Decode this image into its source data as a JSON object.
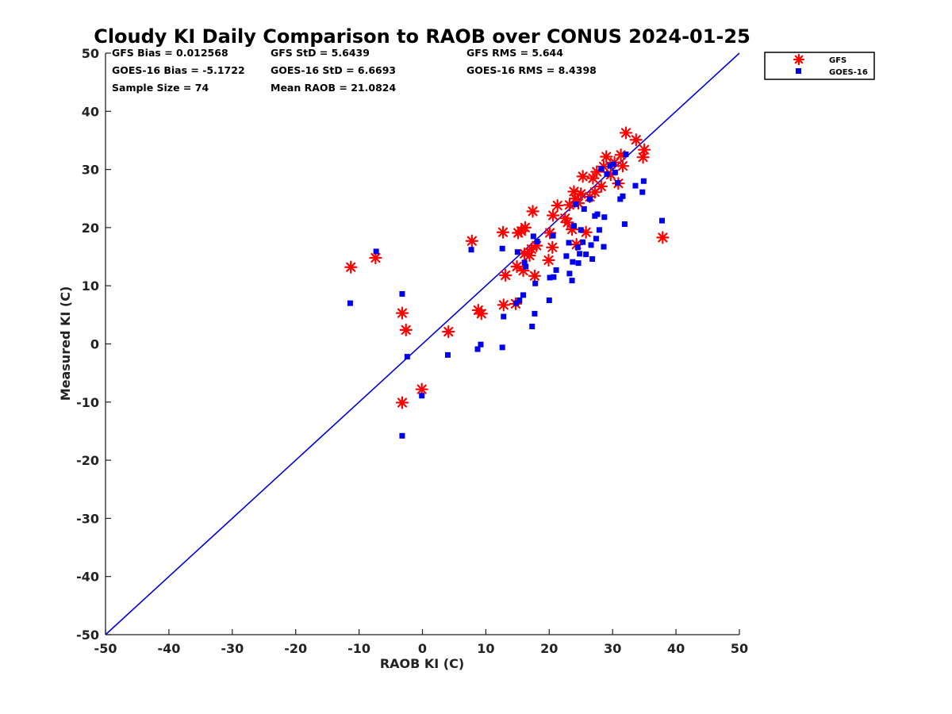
{
  "chart_data": {
    "type": "scatter",
    "title": "Cloudy KI Daily Comparison to RAOB over CONUS 2024-01-25",
    "xlabel": "RAOB KI (C)",
    "ylabel": "Measured KI (C)",
    "xlim": [
      -50,
      50
    ],
    "ylim": [
      -50,
      50
    ],
    "xticks": [
      -50,
      -40,
      -30,
      -20,
      -10,
      0,
      10,
      20,
      30,
      40,
      50
    ],
    "yticks": [
      -50,
      -40,
      -30,
      -20,
      -10,
      0,
      10,
      20,
      30,
      40,
      50
    ],
    "grid": false,
    "legend_position": "outside-top-right",
    "reference_line": {
      "x": [
        -50,
        50
      ],
      "y": [
        -50,
        50
      ],
      "color": "#0000dd"
    },
    "stats": [
      "GFS Bias = 0.012568",
      "GFS StD = 5.6439",
      "GFS RMS = 5.644",
      "GOES-16 Bias = -5.1722",
      "GOES-16 StD = 6.6693",
      "GOES-16 RMS = 8.4398",
      "Sample Size = 74",
      "Mean RAOB = 21.0824"
    ],
    "series": [
      {
        "name": "GFS",
        "marker": "asterisk",
        "color": "#ff0000",
        "points": [
          [
            -11.3,
            13.2
          ],
          [
            -7.4,
            14.8
          ],
          [
            -3.2,
            5.3
          ],
          [
            -2.6,
            2.4
          ],
          [
            -3.2,
            -10.1
          ],
          [
            -0.1,
            -7.8
          ],
          [
            4.1,
            2.1
          ],
          [
            7.8,
            17.7
          ],
          [
            8.8,
            5.8
          ],
          [
            9.3,
            5.2
          ],
          [
            12.7,
            19.2
          ],
          [
            12.8,
            6.7
          ],
          [
            13.1,
            11.8
          ],
          [
            14.7,
            6.9
          ],
          [
            14.9,
            13.3
          ],
          [
            15.1,
            19.1
          ],
          [
            15.6,
            19.4
          ],
          [
            15.9,
            12.6
          ],
          [
            16.1,
            15.5
          ],
          [
            16.2,
            20.0
          ],
          [
            16.9,
            15.2
          ],
          [
            17.2,
            16.3
          ],
          [
            17.4,
            22.8
          ],
          [
            17.7,
            11.7
          ],
          [
            18.0,
            16.9
          ],
          [
            19.9,
            14.4
          ],
          [
            20.1,
            19.1
          ],
          [
            20.5,
            16.6
          ],
          [
            20.6,
            22.1
          ],
          [
            21.3,
            23.8
          ],
          [
            22.5,
            21.6
          ],
          [
            22.9,
            20.9
          ],
          [
            23.2,
            23.9
          ],
          [
            23.6,
            19.7
          ],
          [
            23.9,
            26.2
          ],
          [
            24.1,
            25.0
          ],
          [
            24.3,
            17.1
          ],
          [
            24.6,
            24.2
          ],
          [
            25.0,
            25.8
          ],
          [
            25.3,
            28.8
          ],
          [
            25.8,
            19.2
          ],
          [
            26.4,
            25.3
          ],
          [
            26.9,
            28.5
          ],
          [
            27.2,
            26.1
          ],
          [
            27.5,
            29.6
          ],
          [
            28.2,
            27.1
          ],
          [
            28.6,
            30.5
          ],
          [
            29.0,
            32.2
          ],
          [
            29.7,
            29.1
          ],
          [
            30.3,
            31.2
          ],
          [
            30.9,
            27.6
          ],
          [
            31.3,
            32.5
          ],
          [
            31.6,
            30.6
          ],
          [
            32.1,
            36.3
          ],
          [
            33.7,
            35.1
          ],
          [
            34.8,
            32.1
          ],
          [
            35.0,
            33.4
          ],
          [
            37.9,
            18.3
          ]
        ]
      },
      {
        "name": "GOES-16",
        "marker": "square",
        "color": "#0000ee",
        "points": [
          [
            -11.4,
            7.0
          ],
          [
            -7.3,
            15.9
          ],
          [
            -3.2,
            8.6
          ],
          [
            -3.2,
            -15.8
          ],
          [
            -2.4,
            -2.2
          ],
          [
            -0.1,
            -8.9
          ],
          [
            4.0,
            -1.9
          ],
          [
            7.7,
            16.2
          ],
          [
            8.7,
            -0.9
          ],
          [
            9.2,
            -0.1
          ],
          [
            12.6,
            16.4
          ],
          [
            12.6,
            -0.6
          ],
          [
            12.8,
            4.7
          ],
          [
            14.8,
            7.0
          ],
          [
            15.0,
            15.8
          ],
          [
            15.3,
            7.5
          ],
          [
            15.9,
            8.4
          ],
          [
            16.1,
            14.0
          ],
          [
            16.3,
            13.3
          ],
          [
            17.3,
            3.0
          ],
          [
            17.5,
            18.5
          ],
          [
            17.7,
            5.2
          ],
          [
            17.8,
            10.4
          ],
          [
            18.1,
            17.6
          ],
          [
            20.0,
            7.5
          ],
          [
            20.1,
            11.4
          ],
          [
            20.6,
            18.6
          ],
          [
            20.7,
            11.5
          ],
          [
            21.1,
            12.7
          ],
          [
            22.7,
            15.1
          ],
          [
            23.1,
            17.4
          ],
          [
            23.2,
            12.1
          ],
          [
            23.6,
            10.9
          ],
          [
            23.7,
            14.1
          ],
          [
            23.9,
            20.3
          ],
          [
            24.2,
            24.0
          ],
          [
            24.5,
            16.6
          ],
          [
            24.8,
            15.5
          ],
          [
            24.6,
            13.9
          ],
          [
            25.0,
            19.6
          ],
          [
            25.3,
            17.5
          ],
          [
            25.5,
            23.2
          ],
          [
            25.8,
            15.4
          ],
          [
            26.4,
            24.9
          ],
          [
            26.6,
            17.0
          ],
          [
            26.8,
            14.6
          ],
          [
            27.2,
            22.0
          ],
          [
            27.4,
            18.1
          ],
          [
            27.6,
            22.3
          ],
          [
            27.9,
            19.6
          ],
          [
            28.2,
            30.1
          ],
          [
            28.6,
            16.7
          ],
          [
            28.7,
            21.8
          ],
          [
            29.1,
            29.2
          ],
          [
            29.6,
            30.6
          ],
          [
            30.4,
            29.5
          ],
          [
            30.8,
            27.7
          ],
          [
            31.2,
            24.9
          ],
          [
            31.6,
            25.4
          ],
          [
            31.9,
            20.6
          ],
          [
            33.6,
            27.2
          ],
          [
            34.7,
            26.1
          ],
          [
            34.9,
            28.0
          ],
          [
            37.8,
            21.2
          ],
          [
            30.1,
            30.9
          ],
          [
            32.1,
            32.6
          ]
        ]
      }
    ]
  }
}
